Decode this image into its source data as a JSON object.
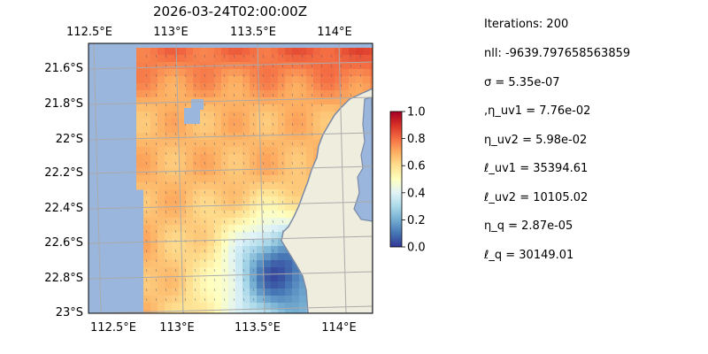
{
  "chart_data": {
    "type": "heatmap",
    "title": "2026-03-24T02:00:00Z",
    "x_ticks": [
      "112.5°E",
      "113°E",
      "113.5°E",
      "114°E"
    ],
    "y_ticks": [
      "21.6°S",
      "21.8°S",
      "22°S",
      "22.2°S",
      "22.4°S",
      "22.6°S",
      "22.8°S",
      "23°S"
    ],
    "x_range_deg_east": [
      112.5,
      114.2
    ],
    "y_range_deg_south": [
      21.5,
      23.0
    ],
    "colorbar": {
      "ticks": [
        "0.0",
        "0.2",
        "0.4",
        "0.6",
        "0.8",
        "1.0"
      ],
      "range": [
        0.0,
        1.0
      ],
      "colormap": "RdYlBu_r"
    },
    "grid": true,
    "colors": {
      "ocean": "#9ab6dd",
      "land": "#efedde",
      "coast": "#7a8aa6"
    }
  },
  "stats": [
    "Iterations: 200",
    "nll: -9639.797658563859",
    "σ = 5.35e-07",
    ",η_uv1 = 7.76e-02",
    "η_uv2 = 5.98e-02",
    "ℓ_uv1 = 35394.61",
    "ℓ_uv2 = 10105.02",
    "η_q = 2.87e-05",
    "ℓ_q = 30149.01"
  ]
}
